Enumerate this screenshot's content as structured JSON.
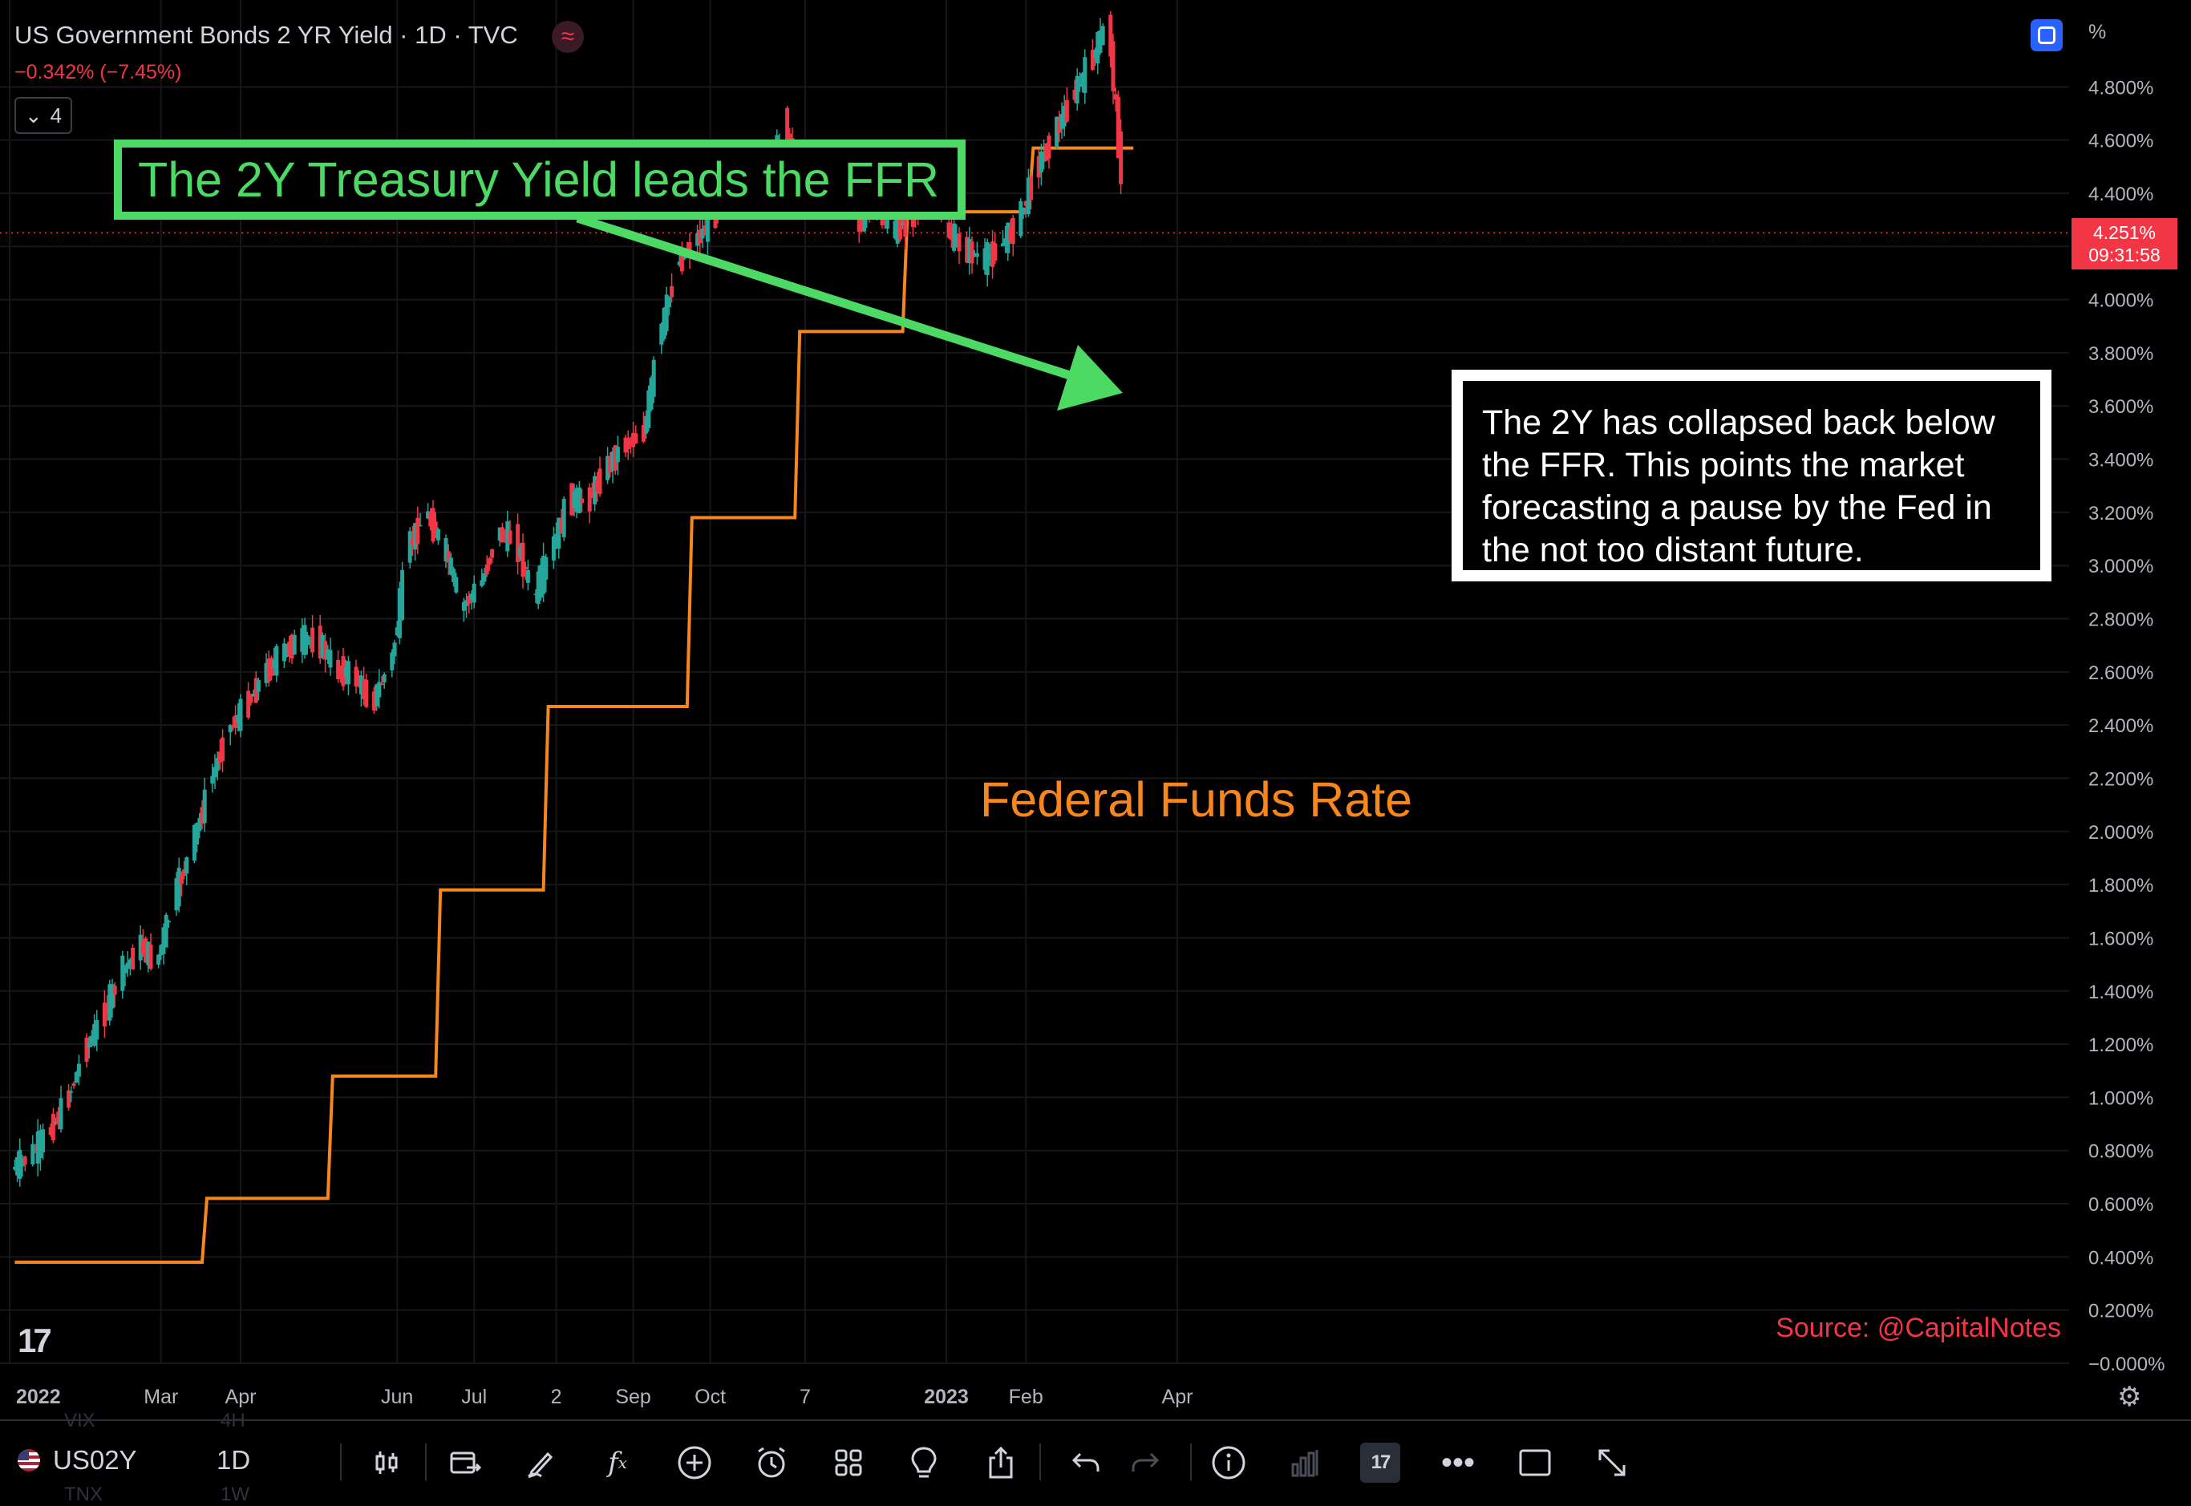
{
  "header": {
    "title": "US Government Bonds 2 YR Yield · 1D · TVC",
    "change": "−0.342% (−7.45%)",
    "indicator_count": "4",
    "logo_icon": "tvc-wave-icon"
  },
  "annotations": {
    "green_box": "The 2Y Treasury Yield leads the FFR",
    "white_box": "The 2Y has collapsed back below the FFR. This points the market forecasting a pause by the Fed in the not too distant future.",
    "ffr_label": "Federal Funds Rate",
    "source": "Source: @CapitalNotes"
  },
  "price_scale": {
    "unit": "%",
    "current_value": "4.251%",
    "countdown": "09:31:58"
  },
  "chart_data": {
    "type": "line",
    "title": "US Government Bonds 2 YR Yield · 1D · TVC",
    "x": [
      "2022-01-03",
      "2022-01-10",
      "2022-01-18",
      "2022-01-24",
      "2022-01-31",
      "2022-02-07",
      "2022-02-14",
      "2022-02-22",
      "2022-02-28",
      "2022-03-07",
      "2022-03-14",
      "2022-03-21",
      "2022-03-28",
      "2022-04-04",
      "2022-04-11",
      "2022-04-18",
      "2022-04-25",
      "2022-05-02",
      "2022-05-09",
      "2022-05-16",
      "2022-05-23",
      "2022-05-31",
      "2022-06-06",
      "2022-06-13",
      "2022-06-21",
      "2022-06-27",
      "2022-07-05",
      "2022-07-11",
      "2022-07-18",
      "2022-07-25",
      "2022-08-01",
      "2022-08-08",
      "2022-08-15",
      "2022-08-22",
      "2022-08-29",
      "2022-09-06",
      "2022-09-12",
      "2022-09-19",
      "2022-09-26",
      "2022-10-03",
      "2022-10-10",
      "2022-10-17",
      "2022-10-24",
      "2022-10-31",
      "2022-11-07",
      "2022-11-14",
      "2022-11-21",
      "2022-11-28",
      "2022-12-05",
      "2022-12-12",
      "2022-12-19",
      "2022-12-27",
      "2023-01-03",
      "2023-01-09",
      "2023-01-17",
      "2023-01-23",
      "2023-01-30",
      "2023-02-06",
      "2023-02-13",
      "2023-02-21",
      "2023-02-27",
      "2023-03-06",
      "2023-03-10",
      "2023-03-13"
    ],
    "series": [
      {
        "name": "US02Y",
        "values": [
          0.73,
          0.78,
          0.88,
          0.98,
          1.17,
          1.3,
          1.46,
          1.57,
          1.5,
          1.75,
          1.94,
          2.18,
          2.38,
          2.47,
          2.59,
          2.67,
          2.72,
          2.72,
          2.61,
          2.59,
          2.48,
          2.65,
          3.06,
          3.2,
          3.05,
          2.84,
          2.94,
          3.12,
          3.1,
          2.88,
          3.05,
          3.25,
          3.24,
          3.36,
          3.45,
          3.5,
          3.85,
          4.13,
          4.22,
          4.3,
          4.49,
          4.49,
          4.43,
          4.67,
          4.34,
          4.45,
          4.48,
          4.3,
          4.35,
          4.26,
          4.31,
          4.41,
          4.25,
          4.19,
          4.15,
          4.2,
          4.29,
          4.49,
          4.62,
          4.78,
          4.89,
          5.05,
          4.59,
          4.25
        ]
      }
    ],
    "ffr": {
      "name": "Federal Funds Rate",
      "x": [
        "2022-01-03",
        "2022-03-17",
        "2022-05-05",
        "2022-06-16",
        "2022-07-28",
        "2022-09-22",
        "2022-11-03",
        "2022-12-15",
        "2023-02-02",
        "2023-03-13"
      ],
      "values": [
        0.38,
        0.62,
        1.08,
        1.78,
        2.47,
        3.18,
        3.88,
        4.33,
        4.57,
        4.57
      ]
    },
    "current_value": 4.251,
    "ylabel": "%",
    "ylim": [
      0,
      5.0
    ],
    "yticks": [
      "−0.000%",
      "0.200%",
      "0.400%",
      "0.600%",
      "0.800%",
      "1.000%",
      "1.200%",
      "1.400%",
      "1.600%",
      "1.800%",
      "2.000%",
      "2.200%",
      "2.400%",
      "2.600%",
      "2.800%",
      "3.000%",
      "3.200%",
      "3.400%",
      "3.600%",
      "3.800%",
      "4.000%",
      "4.200%",
      "4.400%",
      "4.600%",
      "4.800%"
    ],
    "xticks": [
      "2022",
      "Mar",
      "Apr",
      "Jun",
      "Jul",
      "2",
      "Sep",
      "Oct",
      "7",
      "2023",
      "Feb",
      "Apr"
    ],
    "grid": true,
    "colors": {
      "up": "#26a69a",
      "down": "#f23645",
      "ffr": "#f7861c",
      "annotation_green": "#4cd964",
      "source": "#f23645"
    }
  },
  "toolbar": {
    "symbol": "US02Y",
    "interval": "1D",
    "ghost_symbol_1": "VIX",
    "ghost_interval_1": "4H",
    "ghost_symbol_2": "TNX",
    "ghost_interval_2": "1W",
    "tools": [
      "candles-icon",
      "replay-icon",
      "draw-icon",
      "indicators-icon",
      "add-icon",
      "alert-icon",
      "layouts-icon",
      "ideas-icon",
      "share-icon",
      "undo-icon",
      "redo-icon",
      "info-icon",
      "volume-icon",
      "tradingview-icon",
      "more-icon",
      "fullscreen-box-icon",
      "expand-icon"
    ]
  }
}
